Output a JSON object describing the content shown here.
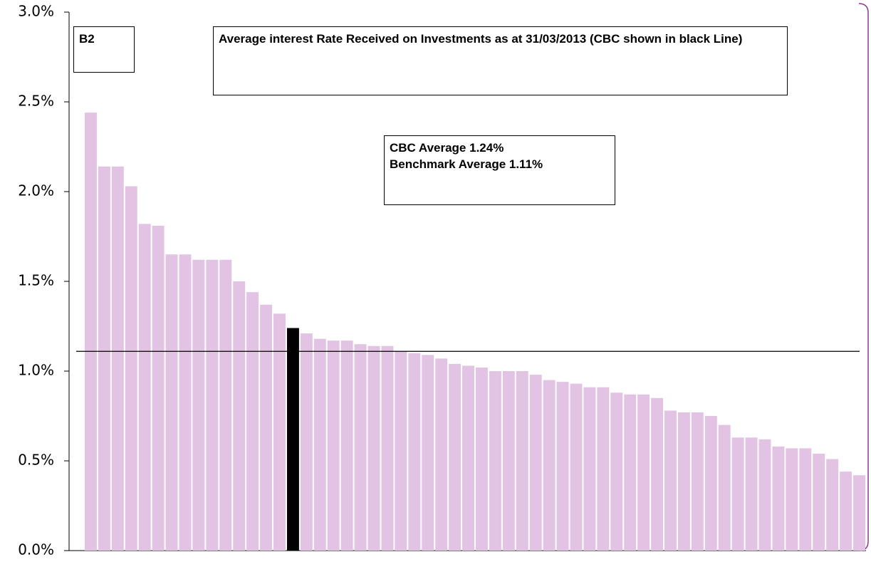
{
  "chart_data": {
    "type": "bar",
    "title": "Average interest Rate Received on Investments as at 31/03/2013 (CBC shown in black Line)",
    "label": "B2",
    "annotations": [
      "CBC Average 1.24%",
      "Benchmark Average 1.11%"
    ],
    "values": [
      2.44,
      2.14,
      2.14,
      2.03,
      1.82,
      1.81,
      1.65,
      1.65,
      1.62,
      1.62,
      1.62,
      1.5,
      1.44,
      1.37,
      1.32,
      1.24,
      1.21,
      1.18,
      1.17,
      1.17,
      1.15,
      1.14,
      1.14,
      1.11,
      1.1,
      1.09,
      1.07,
      1.04,
      1.03,
      1.02,
      1.0,
      1.0,
      1.0,
      0.98,
      0.95,
      0.94,
      0.93,
      0.91,
      0.91,
      0.88,
      0.87,
      0.87,
      0.85,
      0.78,
      0.77,
      0.77,
      0.75,
      0.7,
      0.63,
      0.63,
      0.62,
      0.58,
      0.57,
      0.57,
      0.54,
      0.51,
      0.44,
      0.42
    ],
    "color": "#e3c3e3",
    "highlight": {
      "index": 15,
      "color": "#000000"
    },
    "reference_line": {
      "value": 1.11,
      "color": "#000000"
    },
    "ylim": [
      0,
      3
    ],
    "yticks": [
      {
        "value": 0,
        "label": "0.0%"
      },
      {
        "value": 0.5,
        "label": "0.5%"
      },
      {
        "value": 1,
        "label": "1.0%"
      },
      {
        "value": 1.5,
        "label": "1.5%"
      },
      {
        "value": 2,
        "label": "2.0%"
      },
      {
        "value": 2.5,
        "label": "2.5%"
      },
      {
        "value": 3,
        "label": "3.0%"
      }
    ]
  }
}
